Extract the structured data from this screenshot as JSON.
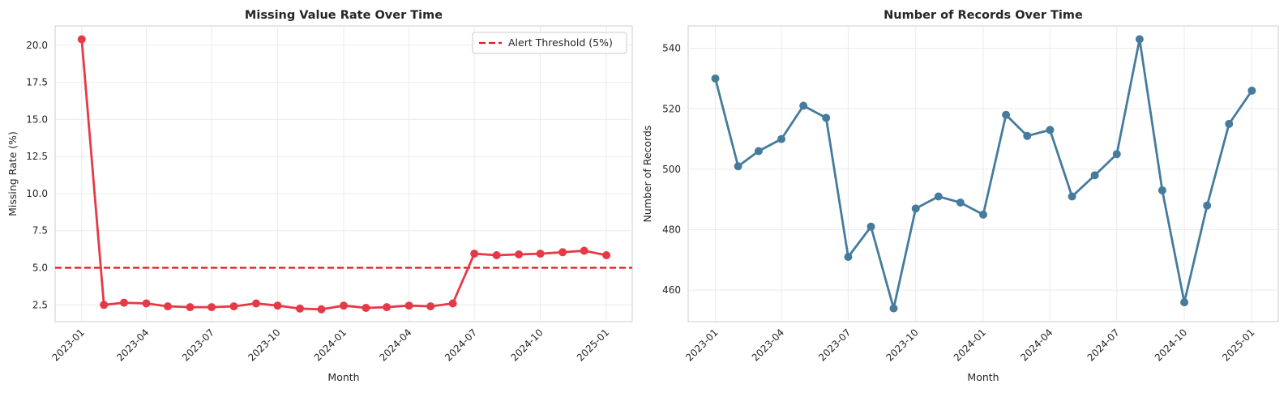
{
  "chart_data": [
    {
      "type": "line",
      "title": "Missing Value Rate Over Time",
      "xlabel": "Month",
      "ylabel": "Missing Rate (%)",
      "x": [
        "2023-01-01",
        "2023-02-01",
        "2023-03-01",
        "2023-04-01",
        "2023-05-01",
        "2023-06-01",
        "2023-07-01",
        "2023-08-01",
        "2023-09-01",
        "2023-10-01",
        "2023-11-01",
        "2023-12-01",
        "2024-01-01",
        "2024-02-01",
        "2024-03-01",
        "2024-04-01",
        "2024-05-01",
        "2024-06-01",
        "2024-07-01",
        "2024-08-01",
        "2024-09-01",
        "2024-10-01",
        "2024-11-01",
        "2024-12-01",
        "2025-01-01"
      ],
      "series": [
        {
          "values": [
            20.4,
            2.5,
            2.65,
            2.6,
            2.4,
            2.35,
            2.35,
            2.4,
            2.6,
            2.45,
            2.25,
            2.2,
            2.45,
            2.3,
            2.35,
            2.45,
            2.4,
            2.6,
            5.95,
            5.85,
            5.9,
            5.95,
            6.05,
            6.15,
            5.85
          ],
          "color": "#e63946"
        }
      ],
      "threshold": {
        "label": "Alert Threshold (5%)",
        "value": 5.0,
        "color": "#e8161b"
      },
      "ylim": [
        1.37,
        21.3
      ],
      "yticks": [
        "2.5",
        "5.0",
        "7.5",
        "10.0",
        "12.5",
        "15.0",
        "17.5",
        "20.0"
      ],
      "xticks": [
        "2023-01",
        "2023-04",
        "2023-07",
        "2023-10",
        "2024-01",
        "2024-04",
        "2024-07",
        "2024-10",
        "2025-01"
      ],
      "grid": true,
      "legend": "top-right"
    },
    {
      "type": "line",
      "title": "Number of Records Over Time",
      "xlabel": "Month",
      "ylabel": "Number of Records",
      "x": [
        "2023-01-01",
        "2023-02-01",
        "2023-03-01",
        "2023-04-01",
        "2023-05-01",
        "2023-06-01",
        "2023-07-01",
        "2023-08-01",
        "2023-09-01",
        "2023-10-01",
        "2023-11-01",
        "2023-12-01",
        "2024-01-01",
        "2024-02-01",
        "2024-03-01",
        "2024-04-01",
        "2024-05-01",
        "2024-06-01",
        "2024-07-01",
        "2024-08-01",
        "2024-09-01",
        "2024-10-01",
        "2024-11-01",
        "2024-12-01",
        "2025-01-01"
      ],
      "series": [
        {
          "values": [
            530,
            501,
            506,
            510,
            521,
            517,
            471,
            481,
            454,
            487,
            491,
            489,
            485,
            518,
            511,
            513,
            491,
            498,
            505,
            543,
            493,
            456,
            488,
            515,
            526
          ],
          "color": "#457b9d"
        }
      ],
      "ylim": [
        449.6,
        547.4
      ],
      "yticks": [
        "460",
        "480",
        "500",
        "520",
        "540"
      ],
      "xticks": [
        "2023-01",
        "2023-04",
        "2023-07",
        "2023-10",
        "2024-01",
        "2024-04",
        "2024-07",
        "2024-10",
        "2025-01"
      ],
      "grid": true
    }
  ]
}
